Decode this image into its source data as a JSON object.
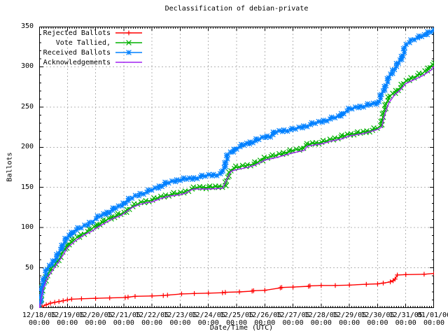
{
  "title": "Declassification of debian-private",
  "axes": {
    "ylabel": "Ballots",
    "xlabel": "Date/Time (UTC)",
    "yticks": [
      "0",
      "50",
      "100",
      "150",
      "200",
      "250",
      "300",
      "350"
    ],
    "xticks": [
      {
        "date": "12/18/05",
        "time": "00:00"
      },
      {
        "date": "12/19/05",
        "time": "00:00"
      },
      {
        "date": "12/20/05",
        "time": "00:00"
      },
      {
        "date": "12/21/05",
        "time": "00:00"
      },
      {
        "date": "12/22/05",
        "time": "00:00"
      },
      {
        "date": "12/23/05",
        "time": "00:00"
      },
      {
        "date": "12/24/05",
        "time": "00:00"
      },
      {
        "date": "12/25/05",
        "time": "00:00"
      },
      {
        "date": "12/26/05",
        "time": "00:00"
      },
      {
        "date": "12/27/05",
        "time": "00:00"
      },
      {
        "date": "12/28/05",
        "time": "00:00"
      },
      {
        "date": "12/29/05",
        "time": "00:00"
      },
      {
        "date": "12/30/05",
        "time": "00:00"
      },
      {
        "date": "12/31/05",
        "time": "00:00"
      },
      {
        "date": "01/01/06",
        "time": "00:00"
      }
    ]
  },
  "legend": [
    {
      "label": "Rejected Ballots",
      "marker": "plus"
    },
    {
      "label": "Vote Tallied,",
      "marker": "cross"
    },
    {
      "label": "Received Ballots",
      "marker": "star"
    },
    {
      "label": "Acknowledgements",
      "marker": "none"
    }
  ],
  "colors": {
    "rejected": "#ff0000",
    "tallied": "#00b000",
    "received": "#0080ff",
    "acknowledgements": "#a020f0",
    "grid": "#b4b4b4",
    "axis": "#000000"
  },
  "chart_data": {
    "type": "line",
    "title": "Declassification of debian-private",
    "xlabel": "Date/Time (UTC)",
    "ylabel": "Ballots",
    "ylim": [
      0,
      350
    ],
    "xlim": [
      0,
      14
    ],
    "x_unit": "days since 12/18/05 00:00 UTC",
    "grid": true,
    "legend_position": "top-left",
    "series": [
      {
        "name": "Rejected Ballots",
        "color": "#ff0000",
        "marker": "plus",
        "marker_style": "at-points",
        "points": [
          [
            0,
            0
          ],
          [
            0.1,
            2
          ],
          [
            0.25,
            4
          ],
          [
            0.4,
            6
          ],
          [
            0.55,
            7
          ],
          [
            0.7,
            8
          ],
          [
            0.85,
            9
          ],
          [
            1.0,
            10
          ],
          [
            1.15,
            11
          ],
          [
            1.5,
            11.5
          ],
          [
            2.0,
            12
          ],
          [
            2.5,
            12.5
          ],
          [
            3.05,
            13
          ],
          [
            3.15,
            13.5
          ],
          [
            3.4,
            14.5
          ],
          [
            4.0,
            15
          ],
          [
            4.4,
            15.5
          ],
          [
            4.55,
            16
          ],
          [
            5.05,
            17.5
          ],
          [
            5.5,
            18
          ],
          [
            6.0,
            18.5
          ],
          [
            6.5,
            19
          ],
          [
            6.6,
            19.5
          ],
          [
            7.1,
            20
          ],
          [
            7.55,
            21
          ],
          [
            7.6,
            21.5
          ],
          [
            8.0,
            22
          ],
          [
            8.55,
            25
          ],
          [
            8.6,
            25.5
          ],
          [
            9.0,
            26
          ],
          [
            9.55,
            27
          ],
          [
            9.6,
            27.5
          ],
          [
            10.0,
            28
          ],
          [
            10.5,
            28
          ],
          [
            11.0,
            28.5
          ],
          [
            11.6,
            29.5
          ],
          [
            12.0,
            30
          ],
          [
            12.2,
            31
          ],
          [
            12.45,
            32.5
          ],
          [
            12.55,
            34
          ],
          [
            12.62,
            36
          ],
          [
            12.7,
            41
          ],
          [
            13.0,
            41.5
          ],
          [
            13.65,
            42
          ],
          [
            14.0,
            43
          ]
        ]
      },
      {
        "name": "Vote Tallied,",
        "color": "#00b000",
        "marker": "cross",
        "marker_style": "dense-band",
        "points": [
          [
            0,
            0
          ],
          [
            0.04,
            8
          ],
          [
            0.08,
            18
          ],
          [
            0.15,
            28
          ],
          [
            0.25,
            38
          ],
          [
            0.35,
            45
          ],
          [
            0.5,
            52
          ],
          [
            0.65,
            58
          ],
          [
            0.75,
            63
          ],
          [
            0.85,
            70
          ],
          [
            1.0,
            78
          ],
          [
            1.2,
            84
          ],
          [
            1.4,
            89
          ],
          [
            1.6,
            93
          ],
          [
            1.8,
            97
          ],
          [
            2.0,
            102
          ],
          [
            2.3,
            108
          ],
          [
            2.6,
            113
          ],
          [
            2.9,
            117
          ],
          [
            3.0,
            118
          ],
          [
            3.2,
            124
          ],
          [
            3.4,
            128
          ],
          [
            3.6,
            131
          ],
          [
            3.8,
            133
          ],
          [
            4.0,
            134
          ],
          [
            4.2,
            137
          ],
          [
            4.5,
            140
          ],
          [
            4.8,
            142
          ],
          [
            5.0,
            143
          ],
          [
            5.2,
            145
          ],
          [
            5.4,
            148
          ],
          [
            5.6,
            150
          ],
          [
            6.0,
            150
          ],
          [
            6.4,
            151
          ],
          [
            6.6,
            152
          ],
          [
            6.7,
            165
          ],
          [
            6.8,
            172
          ],
          [
            7.0,
            175
          ],
          [
            7.3,
            177
          ],
          [
            7.6,
            179
          ],
          [
            7.9,
            184
          ],
          [
            8.0,
            187
          ],
          [
            8.3,
            189
          ],
          [
            8.6,
            192
          ],
          [
            9.0,
            196
          ],
          [
            9.3,
            198
          ],
          [
            9.45,
            202
          ],
          [
            9.6,
            204
          ],
          [
            10.0,
            206
          ],
          [
            10.3,
            209
          ],
          [
            10.6,
            212
          ],
          [
            11.0,
            216
          ],
          [
            11.4,
            218
          ],
          [
            11.8,
            221
          ],
          [
            12.0,
            224
          ],
          [
            12.1,
            226
          ],
          [
            12.2,
            240
          ],
          [
            12.3,
            255
          ],
          [
            12.45,
            264
          ],
          [
            12.6,
            268
          ],
          [
            12.8,
            274
          ],
          [
            13.0,
            282
          ],
          [
            13.2,
            286
          ],
          [
            13.4,
            289
          ],
          [
            13.6,
            292
          ],
          [
            13.8,
            298
          ],
          [
            14.0,
            305
          ]
        ]
      },
      {
        "name": "Received Ballots",
        "color": "#0080ff",
        "marker": "star",
        "marker_style": "dense-band",
        "points": [
          [
            0,
            0
          ],
          [
            0.04,
            10
          ],
          [
            0.08,
            22
          ],
          [
            0.15,
            35
          ],
          [
            0.25,
            45
          ],
          [
            0.35,
            52
          ],
          [
            0.5,
            58
          ],
          [
            0.65,
            65
          ],
          [
            0.75,
            72
          ],
          [
            0.85,
            80
          ],
          [
            0.95,
            85
          ],
          [
            1.0,
            87
          ],
          [
            1.1,
            92
          ],
          [
            1.3,
            97
          ],
          [
            1.5,
            100
          ],
          [
            1.7,
            104
          ],
          [
            1.9,
            108
          ],
          [
            2.0,
            111
          ],
          [
            2.2,
            115
          ],
          [
            2.5,
            120
          ],
          [
            2.8,
            126
          ],
          [
            3.0,
            130
          ],
          [
            3.2,
            135
          ],
          [
            3.4,
            139
          ],
          [
            3.6,
            142
          ],
          [
            3.8,
            144
          ],
          [
            4.0,
            147
          ],
          [
            4.2,
            150
          ],
          [
            4.5,
            155
          ],
          [
            4.8,
            158
          ],
          [
            5.0,
            160
          ],
          [
            5.4,
            161
          ],
          [
            5.7,
            163
          ],
          [
            6.0,
            165
          ],
          [
            6.3,
            166
          ],
          [
            6.5,
            168
          ],
          [
            6.6,
            180
          ],
          [
            6.7,
            191
          ],
          [
            6.85,
            195
          ],
          [
            7.0,
            199
          ],
          [
            7.2,
            202
          ],
          [
            7.5,
            206
          ],
          [
            7.8,
            210
          ],
          [
            8.0,
            213
          ],
          [
            8.2,
            214
          ],
          [
            8.4,
            219
          ],
          [
            8.7,
            221
          ],
          [
            9.0,
            222
          ],
          [
            9.2,
            224
          ],
          [
            9.5,
            227
          ],
          [
            9.8,
            230
          ],
          [
            10.0,
            232
          ],
          [
            10.3,
            235
          ],
          [
            10.6,
            238
          ],
          [
            10.8,
            243
          ],
          [
            11.0,
            247
          ],
          [
            11.3,
            250
          ],
          [
            11.6,
            252
          ],
          [
            12.0,
            255
          ],
          [
            12.05,
            258
          ],
          [
            12.15,
            266
          ],
          [
            12.3,
            278
          ],
          [
            12.45,
            290
          ],
          [
            12.6,
            298
          ],
          [
            12.75,
            305
          ],
          [
            12.9,
            315
          ],
          [
            13.0,
            327
          ],
          [
            13.1,
            331
          ],
          [
            13.3,
            335
          ],
          [
            13.5,
            337
          ],
          [
            13.65,
            339
          ],
          [
            13.8,
            343
          ],
          [
            14.0,
            346
          ]
        ]
      },
      {
        "name": "Acknowledgements",
        "color": "#a020f0",
        "marker": "none",
        "marker_style": "none",
        "points": [
          [
            0,
            0
          ],
          [
            0.05,
            8
          ],
          [
            0.15,
            25
          ],
          [
            0.3,
            38
          ],
          [
            0.5,
            48
          ],
          [
            0.7,
            58
          ],
          [
            0.85,
            66
          ],
          [
            1.0,
            75
          ],
          [
            1.3,
            84
          ],
          [
            1.6,
            91
          ],
          [
            1.9,
            96
          ],
          [
            2.0,
            99
          ],
          [
            2.3,
            105
          ],
          [
            2.6,
            111
          ],
          [
            2.9,
            115
          ],
          [
            3.1,
            120
          ],
          [
            3.3,
            125
          ],
          [
            3.5,
            128
          ],
          [
            3.8,
            131
          ],
          [
            4.0,
            132
          ],
          [
            4.3,
            136
          ],
          [
            4.6,
            139
          ],
          [
            5.0,
            141
          ],
          [
            5.2,
            143
          ],
          [
            5.4,
            147
          ],
          [
            5.5,
            148
          ],
          [
            6.0,
            148
          ],
          [
            6.5,
            149
          ],
          [
            6.7,
            163
          ],
          [
            6.8,
            170
          ],
          [
            7.0,
            172
          ],
          [
            7.4,
            175
          ],
          [
            7.6,
            177
          ],
          [
            7.9,
            182
          ],
          [
            8.0,
            184
          ],
          [
            8.4,
            187
          ],
          [
            8.7,
            190
          ],
          [
            9.0,
            193
          ],
          [
            9.4,
            196
          ],
          [
            9.5,
            201
          ],
          [
            9.6,
            202
          ],
          [
            10.0,
            204
          ],
          [
            10.4,
            208
          ],
          [
            10.7,
            210
          ],
          [
            11.0,
            214
          ],
          [
            11.5,
            217
          ],
          [
            12.0,
            222
          ],
          [
            12.15,
            225
          ],
          [
            12.25,
            240
          ],
          [
            12.4,
            255
          ],
          [
            12.6,
            265
          ],
          [
            12.8,
            271
          ],
          [
            13.0,
            279
          ],
          [
            13.3,
            284
          ],
          [
            13.6,
            289
          ],
          [
            13.9,
            296
          ],
          [
            14.0,
            300
          ]
        ]
      }
    ]
  }
}
